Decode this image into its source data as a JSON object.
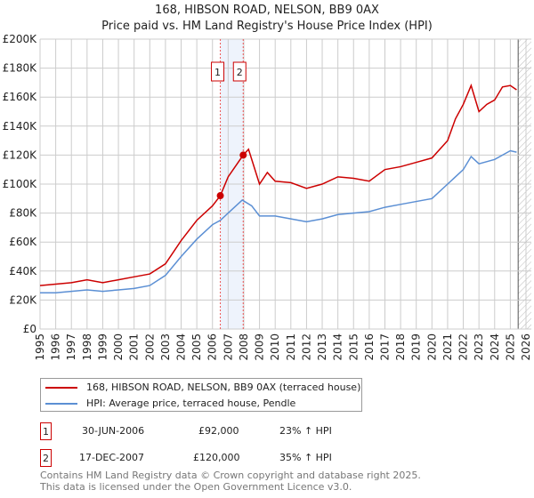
{
  "title": "168, HIBSON ROAD, NELSON, BB9 0AX",
  "subtitle": "Price paid vs. HM Land Registry's House Price Index (HPI)",
  "chart_data": {
    "type": "line",
    "title": "168, HIBSON ROAD, NELSON, BB9 0AX",
    "xlim": [
      1995,
      2026
    ],
    "ylim": [
      0,
      200000
    ],
    "x_ticks": [
      "1995",
      "1996",
      "1997",
      "1998",
      "1999",
      "2000",
      "2001",
      "2002",
      "2003",
      "2004",
      "2005",
      "2006",
      "2007",
      "2008",
      "2009",
      "2010",
      "2011",
      "2012",
      "2013",
      "2014",
      "2015",
      "2016",
      "2017",
      "2018",
      "2019",
      "2020",
      "2021",
      "2022",
      "2023",
      "2024",
      "2025",
      "2026"
    ],
    "y_ticks": [
      "£0",
      "£20K",
      "£40K",
      "£60K",
      "£80K",
      "£100K",
      "£120K",
      "£140K",
      "£160K",
      "£180K",
      "£200K"
    ],
    "grid": true,
    "colors": {
      "property": "#cc0000",
      "hpi": "#5b8fd4"
    },
    "series": [
      {
        "name": "168, HIBSON ROAD, NELSON, BB9 0AX (terraced house)",
        "x": [
          1995,
          1996,
          1997,
          1998,
          1999,
          2000,
          2001,
          2002,
          2003,
          2004,
          2005,
          2006,
          2006.5,
          2007,
          2007.96,
          2008.3,
          2009,
          2009.5,
          2010,
          2011,
          2012,
          2013,
          2014,
          2015,
          2016,
          2017,
          2018,
          2019,
          2020,
          2021,
          2021.5,
          2022,
          2022.5,
          2023,
          2023.5,
          2024,
          2024.5,
          2025,
          2025.4
        ],
        "y": [
          30000,
          31000,
          32000,
          34000,
          32000,
          34000,
          36000,
          38000,
          45000,
          61000,
          75000,
          85000,
          92000,
          105000,
          120000,
          124000,
          100000,
          108000,
          102000,
          101000,
          97000,
          100000,
          105000,
          104000,
          102000,
          110000,
          112000,
          115000,
          118000,
          130000,
          145000,
          155000,
          168000,
          150000,
          155000,
          158000,
          167000,
          168000,
          165000
        ]
      },
      {
        "name": "HPI: Average price, terraced house, Pendle",
        "x": [
          1995,
          1996,
          1997,
          1998,
          1999,
          2000,
          2001,
          2002,
          2003,
          2004,
          2005,
          2006,
          2006.5,
          2007,
          2007.9,
          2008.5,
          2009,
          2010,
          2011,
          2012,
          2013,
          2014,
          2015,
          2016,
          2017,
          2018,
          2019,
          2020,
          2021,
          2022,
          2022.5,
          2023,
          2024,
          2025,
          2025.4
        ],
        "y": [
          25000,
          25000,
          26000,
          27000,
          26000,
          27000,
          28000,
          30000,
          37000,
          50000,
          62000,
          72000,
          75000,
          80000,
          89000,
          85000,
          78000,
          78000,
          76000,
          74000,
          76000,
          79000,
          80000,
          81000,
          84000,
          86000,
          88000,
          90000,
          100000,
          110000,
          119000,
          114000,
          117000,
          123000,
          122000
        ]
      }
    ],
    "annotations": [
      {
        "label": "1",
        "x": 2006.5,
        "y": 92000
      },
      {
        "label": "2",
        "x": 2007.96,
        "y": 120000
      }
    ],
    "forecast_from": 2025.5
  },
  "legend": {
    "property": "168, HIBSON ROAD, NELSON, BB9 0AX (terraced house)",
    "hpi": "HPI: Average price, terraced house, Pendle"
  },
  "transactions": [
    {
      "num": "1",
      "date": "30-JUN-2006",
      "price": "£92,000",
      "delta": "23% ↑ HPI"
    },
    {
      "num": "2",
      "date": "17-DEC-2007",
      "price": "£120,000",
      "delta": "35% ↑ HPI"
    }
  ],
  "footer": [
    "Contains HM Land Registry data © Crown copyright and database right 2025.",
    "This data is licensed under the Open Government Licence v3.0."
  ]
}
